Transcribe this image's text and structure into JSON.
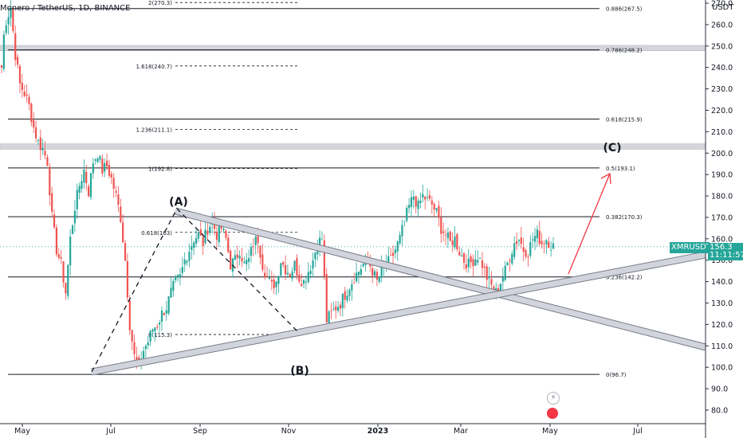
{
  "header": {
    "title": "Monero / TetherUS, 1D, BINANCE"
  },
  "axis": {
    "unit": "USDT"
  },
  "price_label": {
    "symbol": "XMRUSDT",
    "price": "156.3",
    "countdown": "11:11:57"
  },
  "colors": {
    "up": "#26a69a",
    "down": "#ef5350",
    "drawing": "#131722",
    "band": "#b2b5be",
    "arrow": "#f23645"
  },
  "icons": [
    "lightning-icon",
    "us-flag-icon"
  ],
  "chart_data": {
    "type": "candlestick",
    "title": "Monero / TetherUS, 1D, BINANCE",
    "ylim": [
      72,
      276
    ],
    "y_ticks": [
      "80.0",
      "90.0",
      "100.0",
      "110.0",
      "120.0",
      "130.0",
      "140.0",
      "150.0",
      "160.0",
      "170.0",
      "180.0",
      "190.0",
      "200.0",
      "210.0",
      "220.0",
      "230.0",
      "240.0",
      "250.0",
      "260.0",
      "270.0"
    ],
    "x_ticks": [
      "May",
      "Jul",
      "Sep",
      "Nov",
      "2023",
      "Mar",
      "May",
      "Jul"
    ],
    "last_price": 156.3,
    "fib_levels_right": [
      {
        "ratio": "0.886",
        "price": 267.5,
        "label": "0.886(267.5)"
      },
      {
        "ratio": "0.786",
        "price": 248.2,
        "label": "0.786(248.2)"
      },
      {
        "ratio": "0.618",
        "price": 215.9,
        "label": "0.618(215.9)"
      },
      {
        "ratio": "0.5",
        "price": 193.1,
        "label": "0.5(193.1)"
      },
      {
        "ratio": "0.382",
        "price": 170.3,
        "label": "0.382(170.3)"
      },
      {
        "ratio": "0.236",
        "price": 142.2,
        "label": "0.236(142.2)"
      },
      {
        "ratio": "0",
        "price": 96.7,
        "label": "0(96.7)"
      }
    ],
    "fib_levels_left": [
      {
        "price": 270.3,
        "label": "2(270.3)"
      },
      {
        "price": 240.7,
        "label": "1.618(240.7)"
      },
      {
        "price": 211.1,
        "label": "1.236(211.1)"
      },
      {
        "price": 192.8,
        "label": "1(192.8)"
      },
      {
        "price": 163.0,
        "label": "0.618(163)"
      },
      {
        "price": 115.3,
        "label": "0(115.3)"
      }
    ],
    "annotations": [
      "(A)",
      "(B)",
      "(C)"
    ],
    "zones": [
      [
        247.8,
        250.3
      ],
      [
        201.8,
        204.3
      ]
    ],
    "candle_path": [
      [
        0,
        240
      ],
      [
        1,
        255
      ],
      [
        2,
        262
      ],
      [
        4,
        268
      ],
      [
        6,
        246
      ],
      [
        8,
        232
      ],
      [
        10,
        228
      ],
      [
        12,
        222
      ],
      [
        14,
        212
      ],
      [
        16,
        205
      ],
      [
        18,
        202
      ],
      [
        20,
        196
      ],
      [
        22,
        170
      ],
      [
        24,
        155
      ],
      [
        26,
        148
      ],
      [
        28,
        135
      ],
      [
        30,
        160
      ],
      [
        32,
        175
      ],
      [
        34,
        185
      ],
      [
        36,
        192
      ],
      [
        38,
        182
      ],
      [
        40,
        196
      ],
      [
        42,
        200
      ],
      [
        44,
        192
      ],
      [
        46,
        194
      ],
      [
        48,
        188
      ],
      [
        50,
        180
      ],
      [
        52,
        170
      ],
      [
        54,
        150
      ],
      [
        56,
        120
      ],
      [
        58,
        105
      ],
      [
        60,
        100
      ],
      [
        62,
        108
      ],
      [
        64,
        112
      ],
      [
        66,
        118
      ],
      [
        68,
        120
      ],
      [
        70,
        125
      ],
      [
        72,
        128
      ],
      [
        74,
        135
      ],
      [
        76,
        140
      ],
      [
        78,
        142
      ],
      [
        80,
        150
      ],
      [
        82,
        155
      ],
      [
        84,
        160
      ],
      [
        86,
        162
      ],
      [
        88,
        158
      ],
      [
        90,
        165
      ],
      [
        92,
        168
      ],
      [
        94,
        162
      ],
      [
        96,
        165
      ],
      [
        98,
        160
      ],
      [
        100,
        148
      ],
      [
        102,
        150
      ],
      [
        104,
        155
      ],
      [
        106,
        148
      ],
      [
        108,
        150
      ],
      [
        110,
        158
      ],
      [
        112,
        160
      ],
      [
        114,
        148
      ],
      [
        116,
        142
      ],
      [
        118,
        138
      ],
      [
        120,
        140
      ],
      [
        122,
        150
      ],
      [
        124,
        146
      ],
      [
        126,
        144
      ],
      [
        128,
        148
      ],
      [
        130,
        142
      ],
      [
        132,
        140
      ],
      [
        134,
        145
      ],
      [
        136,
        150
      ],
      [
        138,
        158
      ],
      [
        140,
        160
      ],
      [
        142,
        122
      ],
      [
        144,
        125
      ],
      [
        146,
        128
      ],
      [
        148,
        130
      ],
      [
        150,
        134
      ],
      [
        152,
        138
      ],
      [
        154,
        142
      ],
      [
        156,
        145
      ],
      [
        158,
        148
      ],
      [
        160,
        150
      ],
      [
        162,
        145
      ],
      [
        164,
        140
      ],
      [
        166,
        145
      ],
      [
        168,
        148
      ],
      [
        170,
        150
      ],
      [
        172,
        155
      ],
      [
        174,
        160
      ],
      [
        176,
        168
      ],
      [
        178,
        175
      ],
      [
        180,
        180
      ],
      [
        182,
        175
      ],
      [
        184,
        180
      ],
      [
        186,
        178
      ],
      [
        188,
        176
      ],
      [
        190,
        172
      ],
      [
        192,
        165
      ],
      [
        194,
        162
      ],
      [
        196,
        158
      ],
      [
        198,
        160
      ],
      [
        200,
        154
      ],
      [
        202,
        150
      ],
      [
        204,
        148
      ],
      [
        206,
        150
      ],
      [
        208,
        152
      ],
      [
        210,
        148
      ],
      [
        212,
        142
      ],
      [
        214,
        138
      ],
      [
        216,
        135
      ],
      [
        218,
        140
      ],
      [
        220,
        145
      ],
      [
        222,
        152
      ],
      [
        224,
        158
      ],
      [
        226,
        160
      ],
      [
        228,
        155
      ],
      [
        230,
        154
      ],
      [
        232,
        160
      ],
      [
        234,
        162
      ],
      [
        236,
        158
      ],
      [
        238,
        160
      ],
      [
        240,
        157
      ],
      [
        242,
        156
      ]
    ]
  }
}
